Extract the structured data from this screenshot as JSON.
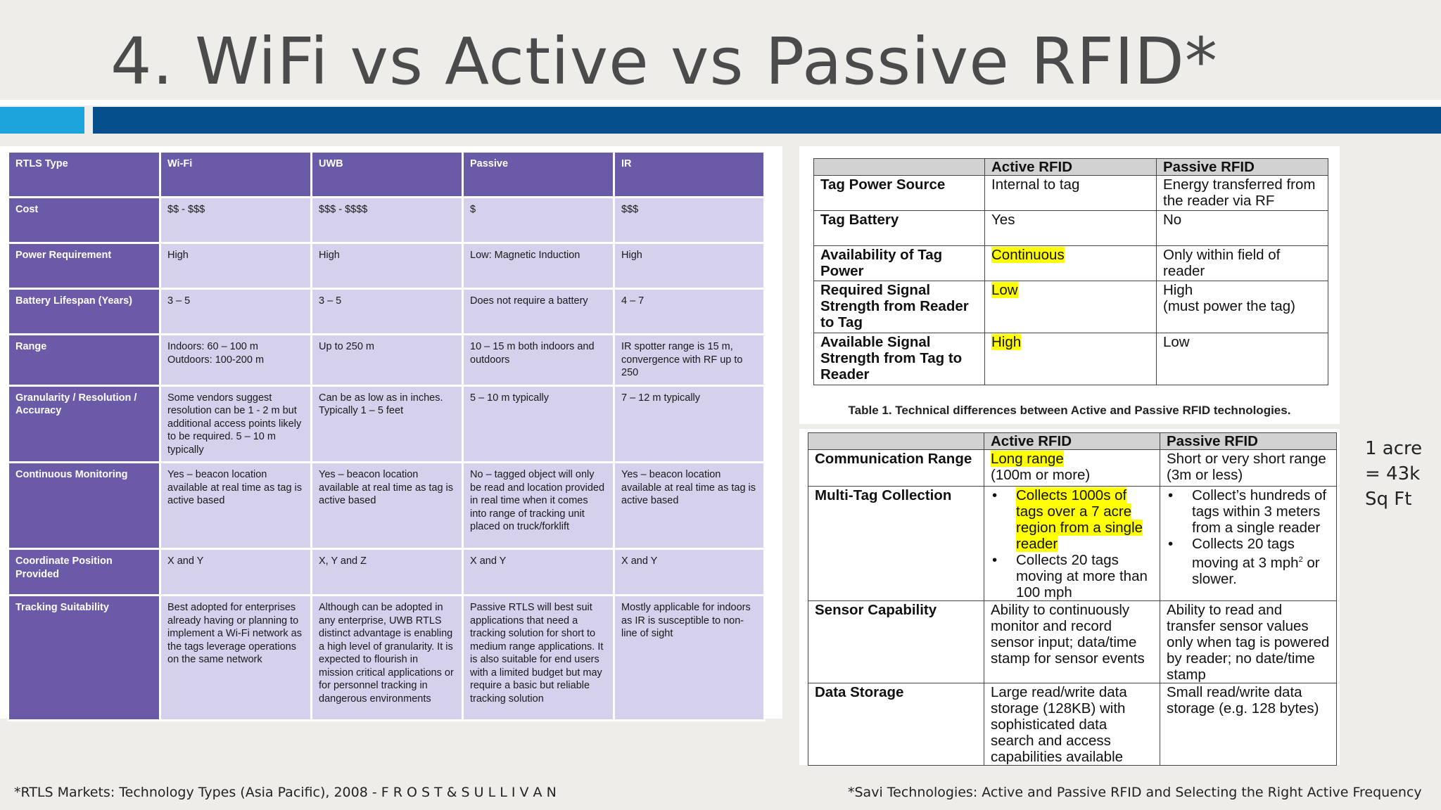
{
  "slide": {
    "title": "4. WiFi vs Active vs Passive RFID*",
    "accent_light": "#1ca4dd",
    "accent_dark": "#054f8d"
  },
  "rtls_table": {
    "headers": [
      "RTLS Type",
      "Wi-Fi",
      "UWB",
      "Passive",
      "IR"
    ],
    "rows": [
      {
        "label": "Cost",
        "cells": [
          "$$ - $$$",
          "$$$ - $$$$",
          "$",
          "$$$"
        ]
      },
      {
        "label": "Power Requirement",
        "cells": [
          "High",
          "High",
          "Low: Magnetic Induction",
          "High"
        ]
      },
      {
        "label": "Battery Lifespan (Years)",
        "cells": [
          "3 – 5",
          "3 – 5",
          "Does not require a battery",
          "4 – 7"
        ]
      },
      {
        "label": "Range",
        "cells": [
          "Indoors: 60 – 100 m\nOutdoors: 100-200 m",
          "Up to 250 m",
          "10 – 15 m both indoors and outdoors",
          "IR spotter range is 15 m, convergence with RF up to 250"
        ]
      },
      {
        "label": "Granularity / Resolution / Accuracy",
        "cells": [
          "Some vendors suggest resolution can be 1 - 2 m but additional access points likely to be required. 5 – 10 m typically",
          "Can be as low as in inches. Typically 1 – 5 feet",
          "5 – 10 m typically",
          "7 – 12 m typically"
        ]
      },
      {
        "label": "Continuous Monitoring",
        "cells": [
          "Yes – beacon location available at real time as tag is active based",
          "Yes – beacon location available at real time as tag is active based",
          "No – tagged object will only be read and location provided in real time when it comes into range of tracking unit placed on truck/forklift",
          "Yes – beacon location available at real time as tag is active based"
        ]
      },
      {
        "label": "Coordinate Position Provided",
        "cells": [
          "X and Y",
          "X, Y and Z",
          "X and Y",
          "X and Y"
        ]
      },
      {
        "label": "Tracking Suitability",
        "cells": [
          "Best adopted for enterprises already having or planning to implement a Wi-Fi network as the tags leverage operations on the same network",
          "Although can be adopted in any enterprise, UWB RTLS distinct advantage is enabling a high level of granularity. It is expected to flourish in mission critical applications or for personnel tracking in dangerous environments",
          "Passive RTLS will best suit applications that need a tracking solution for short to medium range applications. It is also suitable for end users with a  limited budget but may require a basic but reliable tracking solution",
          "Mostly applicable for indoors as IR is susceptible to non-line of sight"
        ]
      }
    ]
  },
  "rfid_table1": {
    "headers": [
      "",
      "Active RFID",
      "Passive RFID"
    ],
    "rows": [
      {
        "label": "Tag Power Source",
        "active": "Internal to tag",
        "passive": "Energy transferred from the reader via RF"
      },
      {
        "label": "Tag Battery",
        "active": "Yes",
        "passive": "No"
      },
      {
        "label": "Availability of Tag Power",
        "active": "Continuous",
        "passive": "Only within field of reader"
      },
      {
        "label": "Required Signal Strength from Reader to Tag",
        "active": "Low",
        "passive": "High\n(must power the tag)"
      },
      {
        "label": "Available Signal Strength from Tag to Reader",
        "active": "High",
        "passive": "Low"
      }
    ],
    "caption": "Table 1. Technical differences between Active and Passive RFID technologies."
  },
  "rfid_table2": {
    "headers": [
      "",
      "Active RFID",
      "Passive RFID"
    ],
    "comm_range": {
      "label": "Communication Range",
      "active_hl": "Long range",
      "active_rest": "(100m or more)",
      "passive": "Short or very short range (3m or less)"
    },
    "multi_tag": {
      "label": "Multi-Tag Collection",
      "active": [
        "Collects 1000s of tags over a 7 acre region from a single reader",
        "Collects 20 tags moving at more than 100 mph"
      ],
      "passive_1": "Collect’s hundreds of tags within 3 meters from a single reader",
      "passive_2": "Collects 20 tags moving at 3 mph",
      "passive_2_sup": "2",
      "passive_2_end": " or slower."
    },
    "sensor": {
      "label": "Sensor Capability",
      "active": "Ability to continuously monitor and record sensor input; data/time stamp for sensor events",
      "passive": "Ability to read and transfer sensor values only when tag is powered by reader; no date/time stamp"
    },
    "storage": {
      "label": "Data Storage",
      "active": "Large read/write data storage (128KB) with sophisticated data search and access capabilities available",
      "passive": "Small read/write data storage (e.g. 128 bytes)"
    }
  },
  "side_note": {
    "line1": "1 acre",
    "line2": "= 43k",
    "line3": "Sq Ft"
  },
  "footnotes": {
    "left": "*RTLS Markets: Technology Types (Asia Pacific), 2008 - F R O S T & S U L L I V A N",
    "right": "*Savi Technologies: Active and Passive RFID and Selecting the Right Active Frequency"
  }
}
